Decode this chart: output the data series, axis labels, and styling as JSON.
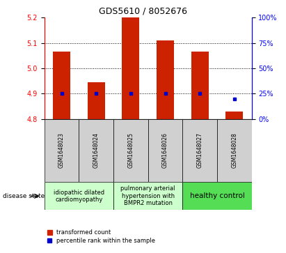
{
  "title": "GDS5610 / 8052676",
  "samples": [
    "GSM1648023",
    "GSM1648024",
    "GSM1648025",
    "GSM1648026",
    "GSM1648027",
    "GSM1648028"
  ],
  "red_values": [
    5.065,
    4.945,
    5.2,
    5.11,
    5.065,
    4.83
  ],
  "blue_values": [
    25,
    25,
    25,
    25,
    25,
    20
  ],
  "ylim_left": [
    4.8,
    5.2
  ],
  "ylim_right": [
    0,
    100
  ],
  "yticks_left": [
    4.8,
    4.9,
    5.0,
    5.1,
    5.2
  ],
  "yticks_right": [
    0,
    25,
    50,
    75,
    100
  ],
  "bar_color": "#cc2200",
  "dot_color": "#0000cc",
  "baseline": 4.8,
  "group_ranges": [
    [
      0,
      1
    ],
    [
      2,
      3
    ],
    [
      4,
      5
    ]
  ],
  "group_labels": [
    "idiopathic dilated\ncardiomyopathy",
    "pulmonary arterial\nhypertension with\nBMPR2 mutation",
    "healthy control"
  ],
  "group_colors": [
    "#ccffcc",
    "#ccffcc",
    "#55dd55"
  ],
  "group_fontsizes": [
    6.0,
    6.0,
    7.5
  ],
  "legend_red": "transformed count",
  "legend_blue": "percentile rank within the sample",
  "disease_state_label": "disease state",
  "grid_ticks": [
    4.9,
    5.0,
    5.1
  ]
}
